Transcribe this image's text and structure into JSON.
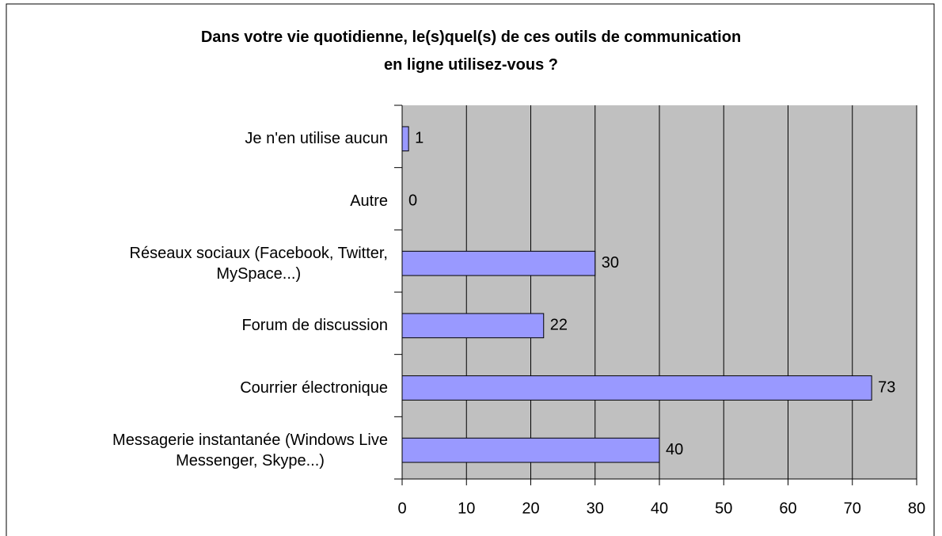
{
  "chart_data": {
    "type": "bar",
    "orientation": "horizontal",
    "title": "Dans votre vie quotidienne, le(s)quel(s) de ces outils de communication\nen ligne utilisez-vous ?",
    "categories": [
      "Je n'en utilise aucun",
      "Autre",
      "Réseaux sociaux (Facebook, Twitter,\nMySpace...)",
      "Forum de discussion",
      "Courrier électronique",
      "Messagerie instantanée (Windows Live\nMessenger, Skype...)"
    ],
    "values": [
      1,
      0,
      30,
      22,
      73,
      40
    ],
    "color": "#9999ff",
    "xlim": [
      0,
      80
    ],
    "xticks": [
      0,
      10,
      20,
      30,
      40,
      50,
      60,
      70,
      80
    ],
    "grid": true
  }
}
